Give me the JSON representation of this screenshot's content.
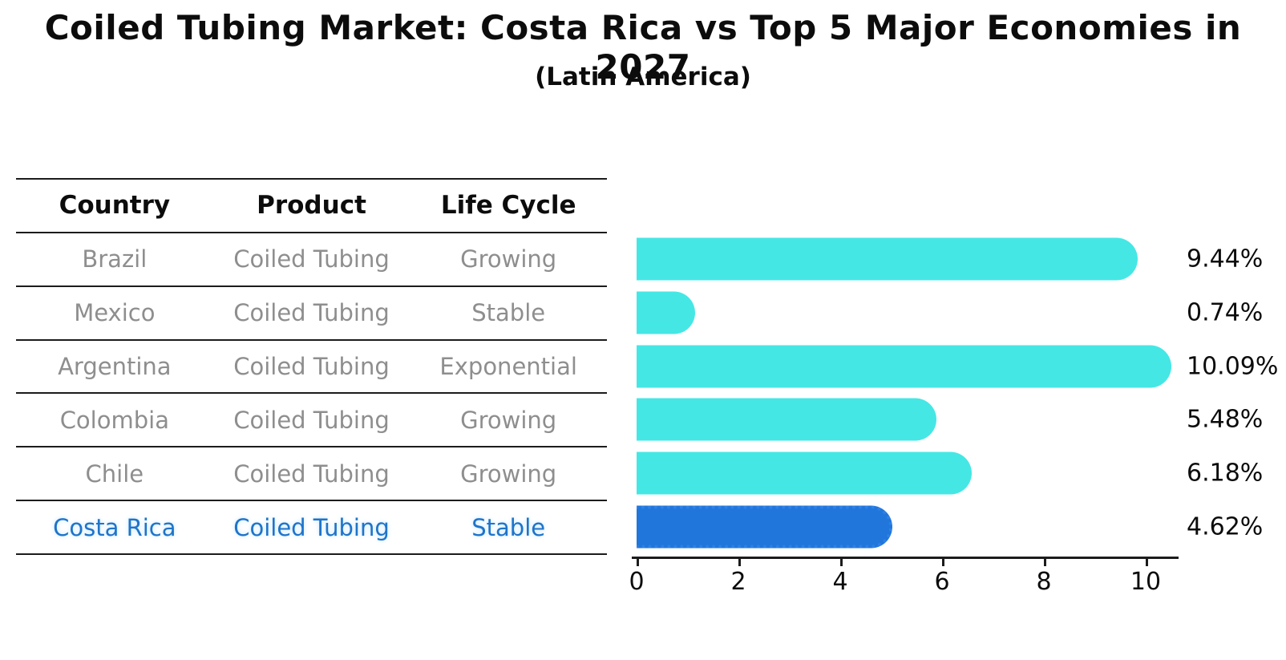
{
  "title": "Coiled Tubing Market: Costa Rica vs Top 5 Major Economies in 2027",
  "subtitle": "(Latin America)",
  "table": {
    "headers": [
      "Country",
      "Product",
      "Life Cycle"
    ],
    "rows": [
      [
        "Brazil",
        "Coiled Tubing",
        "Growing"
      ],
      [
        "Mexico",
        "Coiled Tubing",
        "Stable"
      ],
      [
        "Argentina",
        "Coiled Tubing",
        "Exponential"
      ],
      [
        "Colombia",
        "Coiled Tubing",
        "Growing"
      ],
      [
        "Chile",
        "Coiled Tubing",
        "Growing"
      ],
      [
        "Costa Rica",
        "Coiled Tubing",
        "Stable"
      ]
    ],
    "highlight_row_index": 5
  },
  "chart_data": {
    "type": "bar",
    "orientation": "horizontal",
    "categories": [
      "Brazil",
      "Mexico",
      "Argentina",
      "Colombia",
      "Chile",
      "Costa Rica"
    ],
    "values": [
      9.44,
      0.74,
      10.09,
      5.48,
      6.18,
      4.62
    ],
    "value_labels": [
      "9.44%",
      "0.74%",
      "10.09%",
      "5.48%",
      "6.18%",
      "4.62%"
    ],
    "x_ticks": [
      "0",
      "2",
      "4",
      "6",
      "8",
      "10"
    ],
    "x_tick_values": [
      0,
      2,
      4,
      6,
      8,
      10
    ],
    "xlim": [
      0,
      10.65
    ],
    "grid": false,
    "legend": "none",
    "bar_color": "#45e7e5",
    "highlight_category": "Costa Rica",
    "highlight_color": "#2176dc",
    "highlight_text_color": "#1e74c9"
  }
}
